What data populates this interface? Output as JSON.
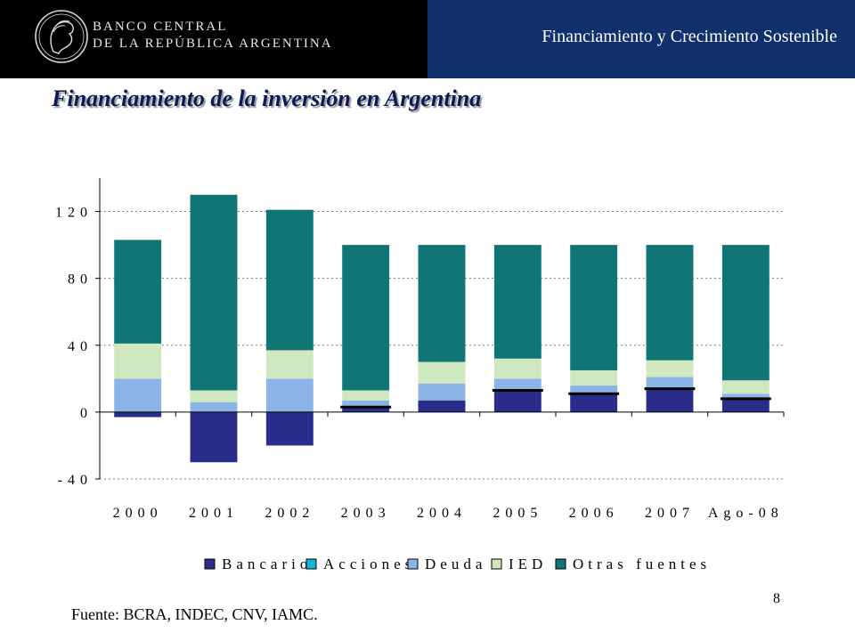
{
  "header": {
    "bank_line1": "BANCO CENTRAL",
    "bank_line2": "DE LA REPÚBLICA ARGENTINA",
    "section_title": "Financiamiento y Crecimiento Sostenible",
    "logo_icon": "effigy-medallion-icon"
  },
  "slide": {
    "title": "Financiamiento de la inversión en Argentina",
    "source": "Fuente: BCRA, INDEC, CNV, IAMC.",
    "page_number": "8"
  },
  "colors": {
    "header_left": "#000000",
    "header_right": "#10306b",
    "title": "#0b1a57"
  },
  "chart_data": {
    "type": "bar",
    "stacked": true,
    "categories": [
      "2000",
      "2001",
      "2002",
      "2003",
      "2004",
      "2005",
      "2006",
      "2007",
      "Ago-08"
    ],
    "yticks": [
      -40,
      0,
      40,
      80,
      120
    ],
    "yticklabels": [
      "-40",
      "0",
      "40",
      "80",
      "120"
    ],
    "ylim": [
      -40,
      140
    ],
    "grid": true,
    "legend_position": "bottom",
    "series": [
      {
        "name": "Bancario",
        "color": "#2a2e8a",
        "values": [
          -3,
          -30,
          -20,
          3,
          7,
          13,
          11,
          14,
          8
        ]
      },
      {
        "name": "Acciones",
        "color": "#16b5d3",
        "values": [
          0,
          0,
          0,
          0,
          0,
          0,
          0,
          0,
          0
        ]
      },
      {
        "name": "Deuda",
        "color": "#8cb4e6",
        "values": [
          20,
          6,
          20,
          4,
          10,
          7,
          5,
          7,
          3
        ]
      },
      {
        "name": "IED",
        "color": "#cfe8c0",
        "values": [
          21,
          7,
          17,
          6,
          13,
          12,
          9,
          10,
          8
        ]
      },
      {
        "name": "Otras fuentes",
        "color": "#0f7575",
        "values": [
          62,
          117,
          84,
          87,
          70,
          68,
          75,
          69,
          81
        ]
      }
    ],
    "markers": [
      null,
      null,
      null,
      3,
      null,
      13,
      11,
      14,
      8
    ]
  }
}
